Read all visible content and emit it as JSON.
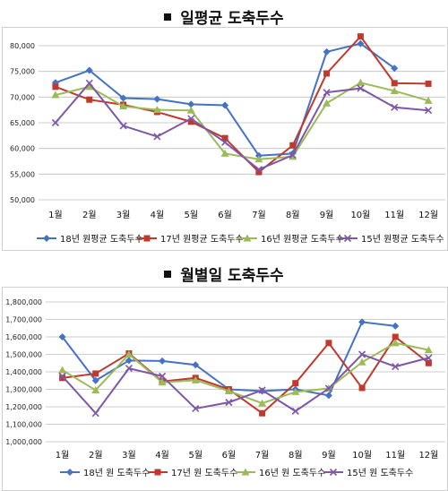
{
  "charts_text": {
    "chart1_title": "일평균 도축두수",
    "chart2_title": "월별일 도축두수"
  },
  "chart_data": [
    {
      "type": "line",
      "title": "일평균 도축두수",
      "categories": [
        "1월",
        "2월",
        "3월",
        "4월",
        "5월",
        "6월",
        "7월",
        "8월",
        "9월",
        "10월",
        "11월",
        "12월"
      ],
      "ylim": [
        50000,
        80000
      ],
      "yticks": [
        50000,
        55000,
        60000,
        65000,
        70000,
        75000,
        80000
      ],
      "ytick_labels": [
        "50,000",
        "55,000",
        "60,000",
        "65,000",
        "70,000",
        "75,000",
        "80,000"
      ],
      "grid": true,
      "legend_position": "bottom",
      "series": [
        {
          "name": "18년 원평균 도축두수",
          "color": "#4472c4",
          "marker": "diamond",
          "values": [
            72800,
            75200,
            69800,
            69600,
            68600,
            68400,
            58600,
            59000,
            78800,
            80400,
            75600,
            null
          ]
        },
        {
          "name": "17년 원평균 도축두수",
          "color": "#c0392b",
          "marker": "square",
          "values": [
            72000,
            69500,
            68500,
            67100,
            65200,
            62000,
            55400,
            60600,
            74600,
            81800,
            72700,
            72600
          ]
        },
        {
          "name": "16년 원평균 도축두수",
          "color": "#9bbb59",
          "marker": "triangle",
          "values": [
            70400,
            72000,
            68200,
            67500,
            67400,
            59000,
            57900,
            58400,
            68800,
            72800,
            71200,
            69300
          ]
        },
        {
          "name": "15년 원평균 도축두수",
          "color": "#7e57a8",
          "marker": "x",
          "values": [
            65000,
            72700,
            64400,
            62300,
            65800,
            61200,
            55900,
            58700,
            70900,
            71700,
            68000,
            67400
          ]
        }
      ]
    },
    {
      "type": "line",
      "title": "월별일 도축두수",
      "categories": [
        "1월",
        "2월",
        "3월",
        "4월",
        "5월",
        "6월",
        "7월",
        "8월",
        "9월",
        "10월",
        "11월",
        "12월"
      ],
      "ylim": [
        1000000,
        1800000
      ],
      "yticks": [
        1000000,
        1100000,
        1200000,
        1300000,
        1400000,
        1500000,
        1600000,
        1700000,
        1800000
      ],
      "ytick_labels": [
        "1,000,000",
        "1,100,000",
        "1,200,000",
        "1,300,000",
        "1,400,000",
        "1,500,000",
        "1,600,000",
        "1,700,000",
        "1,800,000"
      ],
      "grid": true,
      "legend_position": "bottom",
      "series": [
        {
          "name": "18년 원 도축두수",
          "color": "#4472c4",
          "marker": "diamond",
          "values": [
            1600000,
            1350000,
            1465000,
            1462000,
            1440000,
            1300000,
            1290000,
            1300000,
            1265000,
            1685000,
            1662000,
            null
          ]
        },
        {
          "name": "17년 원 도축두수",
          "color": "#c0392b",
          "marker": "square",
          "values": [
            1365000,
            1390000,
            1505000,
            1345000,
            1365000,
            1300000,
            1163000,
            1335000,
            1565000,
            1308000,
            1600000,
            1450000
          ]
        },
        {
          "name": "16년 원 도축두수",
          "color": "#9bbb59",
          "marker": "triangle",
          "values": [
            1410000,
            1295000,
            1500000,
            1340000,
            1352000,
            1290000,
            1220000,
            1285000,
            1305000,
            1455000,
            1565000,
            1525000
          ]
        },
        {
          "name": "15년 원 도축두수",
          "color": "#7e57a8",
          "marker": "x",
          "values": [
            1375000,
            1163000,
            1420000,
            1375000,
            1190000,
            1225000,
            1295000,
            1175000,
            1305000,
            1500000,
            1430000,
            1480000
          ]
        }
      ]
    }
  ]
}
